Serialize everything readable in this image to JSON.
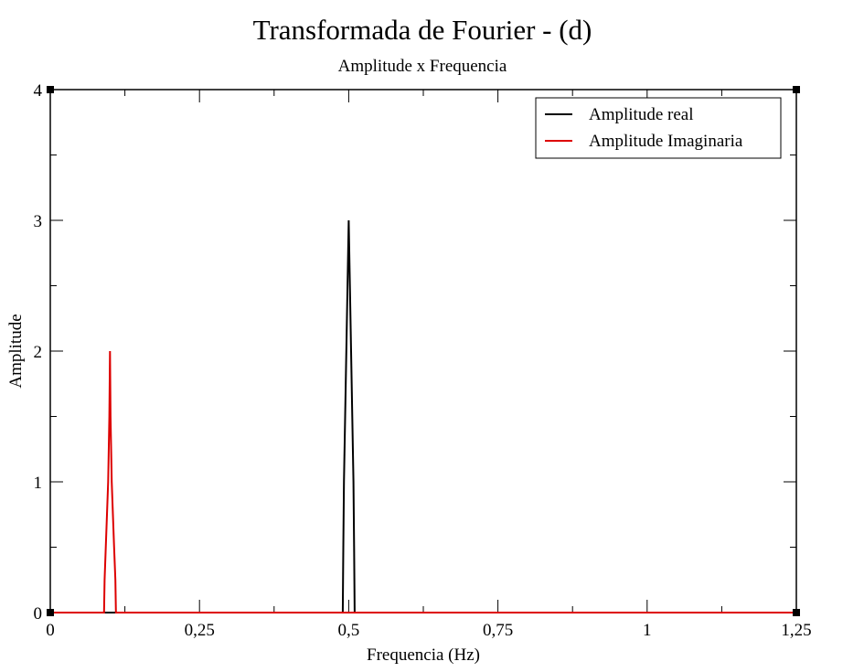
{
  "chart_data": {
    "type": "line",
    "title": "Transformada de Fourier - (d)",
    "subtitle": "Amplitude x Frequencia",
    "xlabel": "Frequencia (Hz)",
    "ylabel": "Amplitude",
    "xlim": [
      0,
      1.25
    ],
    "ylim": [
      0,
      4
    ],
    "x_ticks": [
      0,
      0.25,
      0.5,
      0.75,
      1,
      1.25
    ],
    "x_tick_labels": [
      "0",
      "0,25",
      "0,5",
      "0,75",
      "1",
      "1,25"
    ],
    "x_minor_step": 0.125,
    "y_ticks": [
      0,
      1,
      2,
      3,
      4
    ],
    "y_tick_labels": [
      "0",
      "1",
      "2",
      "3",
      "4"
    ],
    "y_minor_step": 0.5,
    "grid": false,
    "legend_position": "top-right",
    "series": [
      {
        "name": "Amplitude real",
        "color": "#000000",
        "x": [
          0,
          0.49,
          0.491,
          0.492,
          0.494,
          0.496,
          0.498,
          0.5,
          0.502,
          0.504,
          0.506,
          0.508,
          0.509,
          0.51,
          1.25
        ],
        "y": [
          0,
          0,
          0.5,
          1.0,
          1.5,
          2.0,
          2.5,
          3.0,
          2.5,
          2.0,
          1.5,
          1.0,
          0.5,
          0,
          0
        ]
      },
      {
        "name": "Amplitude Imaginaria",
        "color": "#dd0000",
        "x": [
          0,
          0.09,
          0.091,
          0.093,
          0.095,
          0.097,
          0.099,
          0.1,
          0.101,
          0.103,
          0.105,
          0.107,
          0.109,
          0.11,
          1.25
        ],
        "y": [
          0,
          0,
          0.25,
          0.5,
          0.75,
          1.0,
          1.5,
          2.0,
          1.5,
          1.0,
          0.75,
          0.5,
          0.25,
          0,
          0
        ]
      }
    ]
  }
}
